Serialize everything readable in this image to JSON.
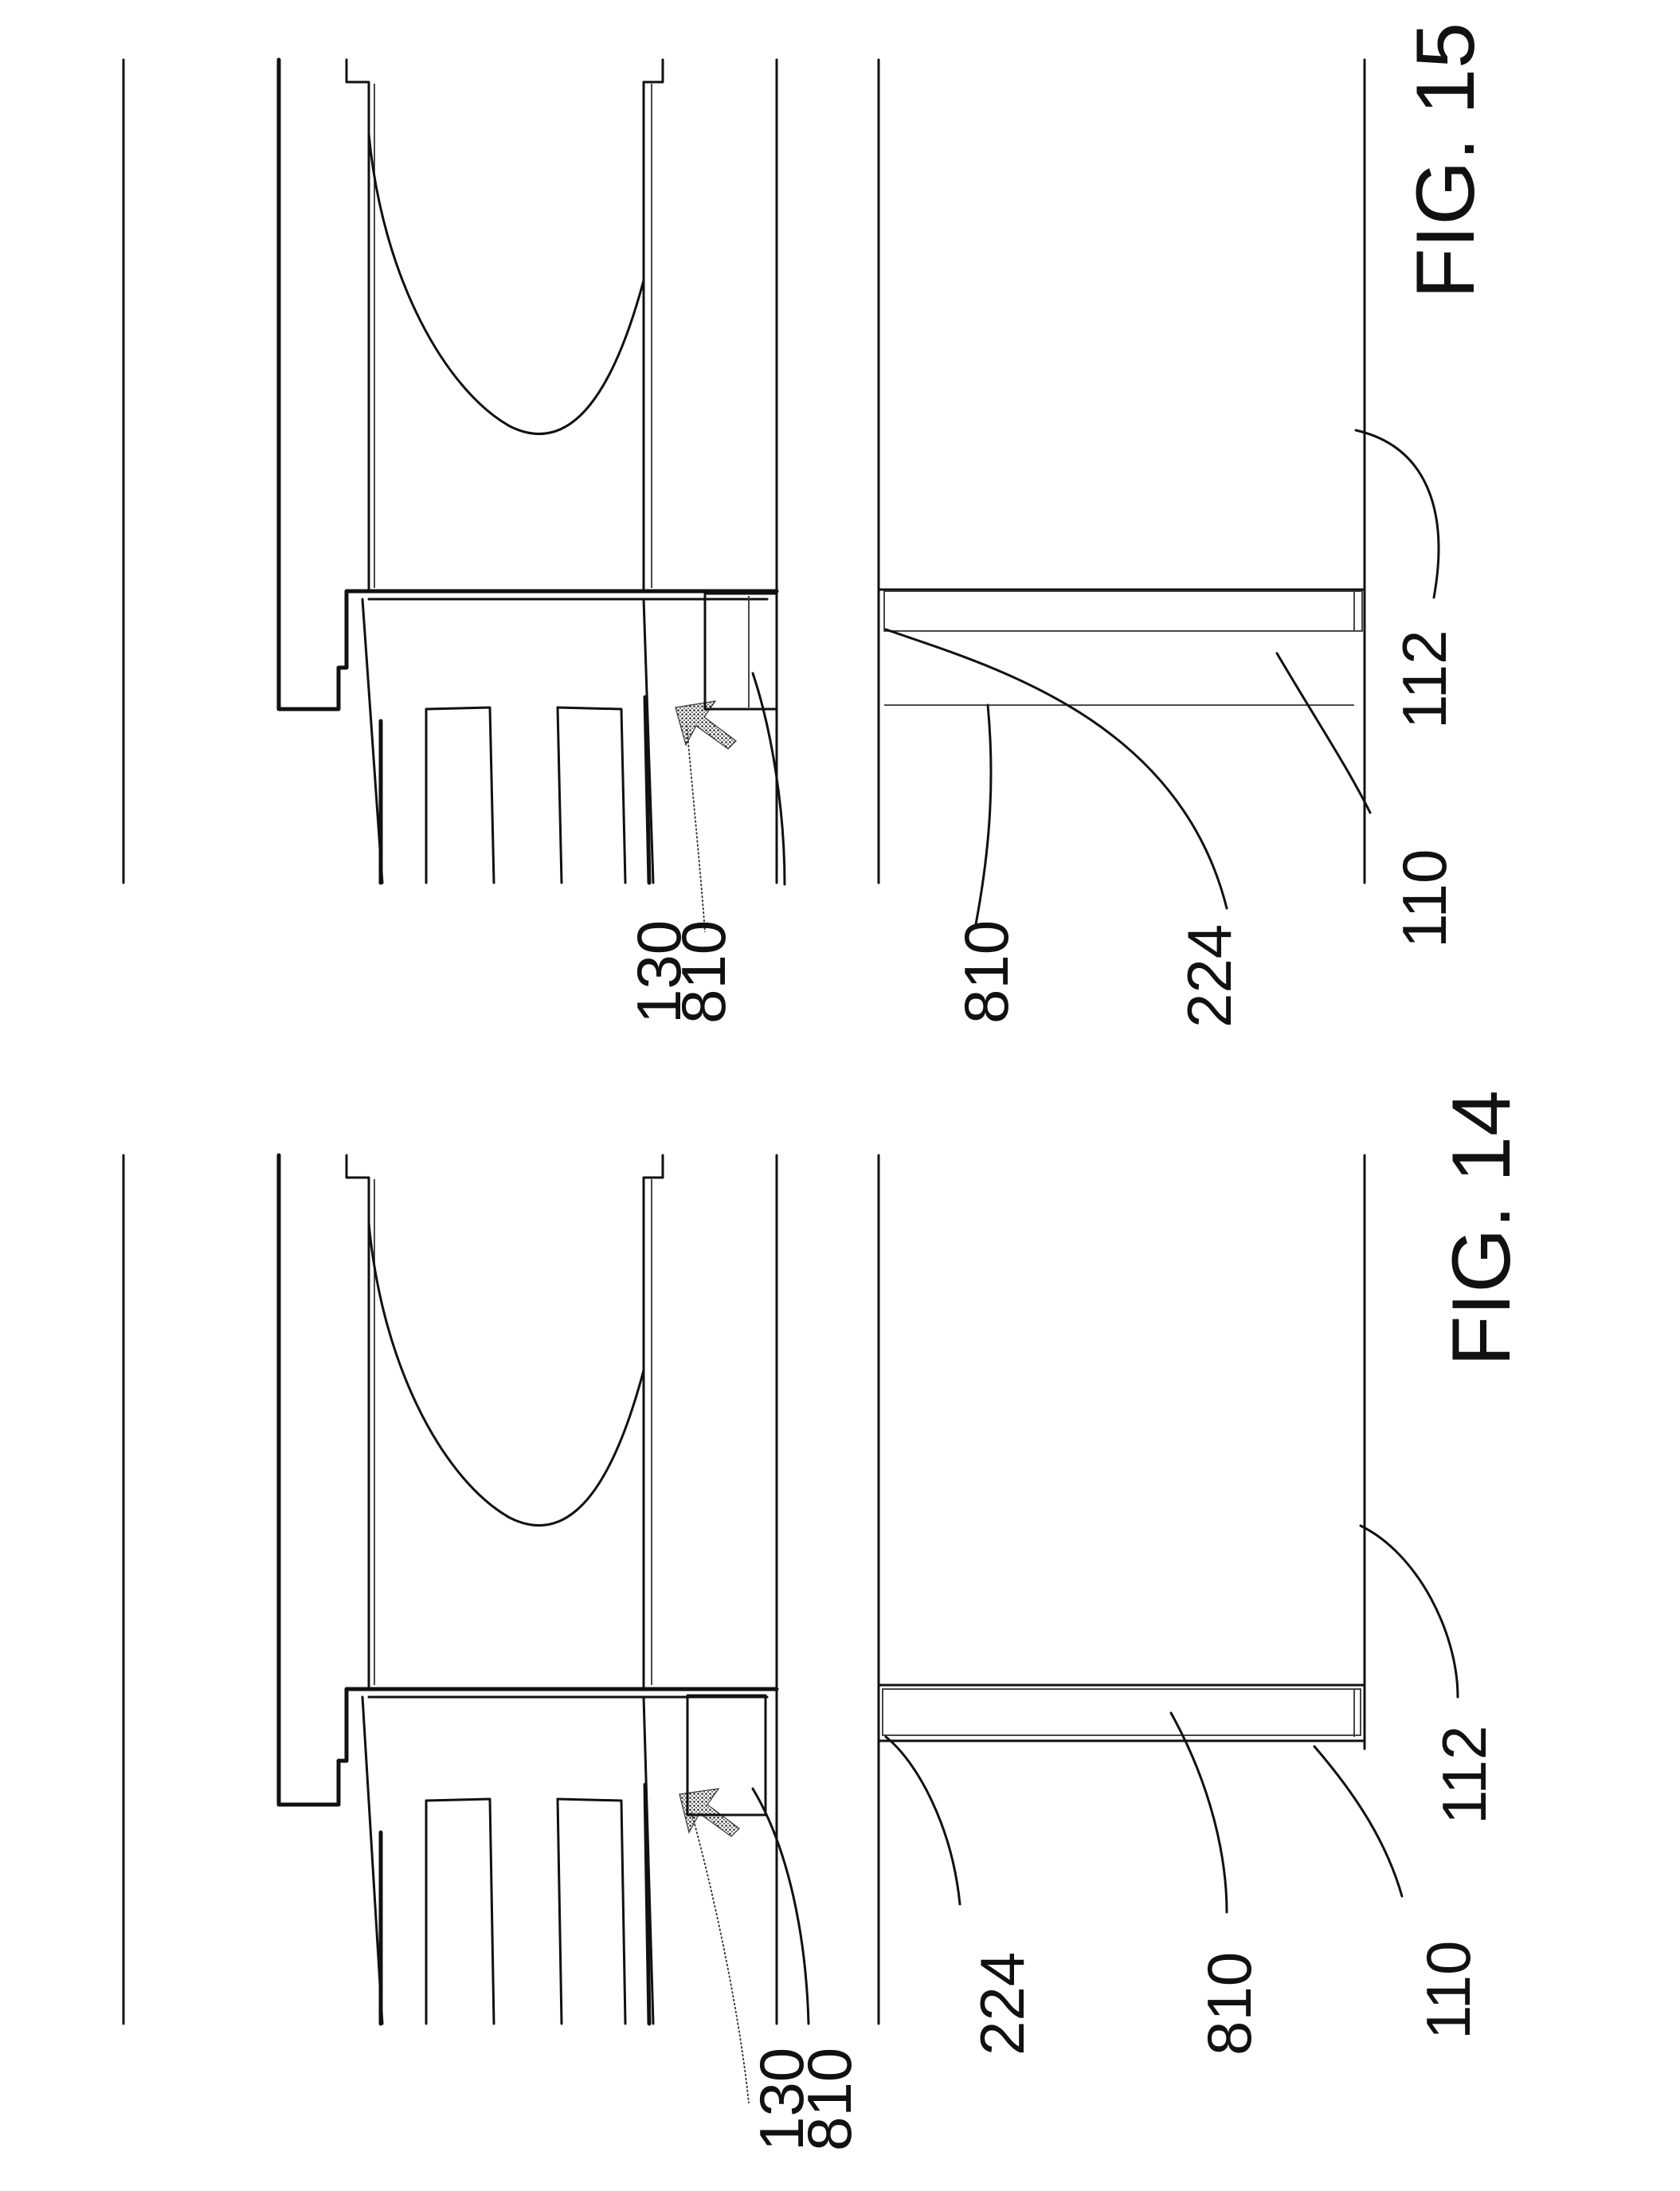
{
  "figures": [
    {
      "caption": "FIG. 14",
      "labels": {
        "l130": "130",
        "l810a": "810",
        "l224": "224",
        "l810b": "810",
        "l110": "110",
        "l112": "112"
      }
    },
    {
      "caption": "FIG. 15",
      "labels": {
        "l130": "130",
        "l810a": "810",
        "l810b": "810",
        "l224": "224",
        "l110": "110",
        "l112": "112"
      }
    }
  ]
}
